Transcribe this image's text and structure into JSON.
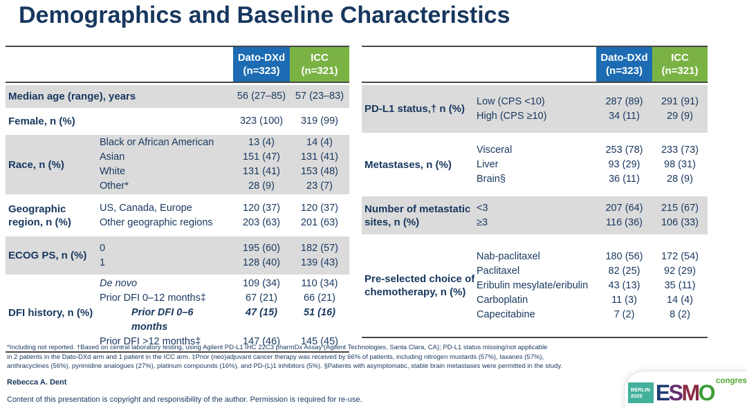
{
  "slide": {
    "title": "Demographics and Baseline Characteristics",
    "author": "Rebecca A. Dent",
    "copyright": "Content of this presentation is copyright and responsibility of the author. Permission is required for re-use."
  },
  "arms": {
    "arm1": {
      "name": "Dato-DXd",
      "n": "(n=323)"
    },
    "arm2": {
      "name": "ICC",
      "n": "(n=321)"
    }
  },
  "left_table": {
    "groups": [
      {
        "label": "Median age (range), years",
        "shaded": true,
        "rows": [
          {
            "sub": "",
            "v1": "56 (27–85)",
            "v2": "57 (23–83)"
          }
        ]
      },
      {
        "label": "Female, n (%)",
        "shaded": false,
        "rows": [
          {
            "sub": "",
            "v1": "323 (100)",
            "v2": "319 (99)"
          }
        ]
      },
      {
        "label": "Race, n (%)",
        "shaded": true,
        "rows": [
          {
            "sub": "Black or African American",
            "v1": "13 (4)",
            "v2": "14 (4)"
          },
          {
            "sub": "Asian",
            "v1": "151 (47)",
            "v2": "131 (41)"
          },
          {
            "sub": "White",
            "v1": "131 (41)",
            "v2": "153 (48)"
          },
          {
            "sub": "Other*",
            "v1": "28 (9)",
            "v2": "23 (7)"
          }
        ]
      },
      {
        "label": "Geographic region, n (%)",
        "shaded": false,
        "rows": [
          {
            "sub": "US, Canada, Europe",
            "v1": "120 (37)",
            "v2": "120 (37)"
          },
          {
            "sub": "Other geographic regions",
            "v1": "203 (63)",
            "v2": "201 (63)"
          }
        ]
      },
      {
        "label": "ECOG PS, n (%)",
        "shaded": true,
        "rows": [
          {
            "sub": "0",
            "v1": "195 (60)",
            "v2": "182 (57)"
          },
          {
            "sub": "1",
            "v1": "128 (40)",
            "v2": "139 (43)"
          }
        ]
      },
      {
        "label": "DFI history, n (%)",
        "shaded": false,
        "rows": [
          {
            "sub": "De novo",
            "style": "italic",
            "v1": "109 (34)",
            "v2": "110 (34)"
          },
          {
            "sub": "Prior DFI 0–12 months‡",
            "v1": "67 (21)",
            "v2": "66 (21)"
          },
          {
            "sub": "Prior DFI 0–6 months",
            "style": "bolditalic",
            "indent": true,
            "v1": "47 (15)",
            "v2": "51 (16)"
          },
          {
            "sub": "Prior DFI >12 months‡",
            "v1": "147 (46)",
            "v2": "145 (45)"
          }
        ]
      }
    ]
  },
  "right_table": {
    "groups": [
      {
        "label": "PD-L1 status,† n (%)",
        "shaded": true,
        "rows": [
          {
            "sub": "Low (CPS <10)",
            "v1": "287 (89)",
            "v2": "291 (91)"
          },
          {
            "sub": "High (CPS ≥10)",
            "v1": "34 (11)",
            "v2": "29 (9)"
          }
        ]
      },
      {
        "label": "Metastases, n (%)",
        "shaded": false,
        "rows": [
          {
            "sub": "Visceral",
            "v1": "253 (78)",
            "v2": "233 (73)"
          },
          {
            "sub": "Liver",
            "v1": "93 (29)",
            "v2": "98 (31)"
          },
          {
            "sub": "Brain§",
            "v1": "36 (11)",
            "v2": "28 (9)"
          }
        ]
      },
      {
        "label": "Number of metastatic sites, n (%)",
        "shaded": true,
        "rows": [
          {
            "sub": "<3",
            "v1": "207 (64)",
            "v2": "215 (67)"
          },
          {
            "sub": "≥3",
            "v1": "116 (36)",
            "v2": "106 (33)"
          }
        ]
      },
      {
        "label": "Pre-selected choice of chemotherapy, n (%)",
        "shaded": false,
        "rows": [
          {
            "sub": "Nab-paclitaxel",
            "v1": "180 (56)",
            "v2": "172 (54)"
          },
          {
            "sub": "Paclitaxel",
            "v1": "82 (25)",
            "v2": "92 (29)"
          },
          {
            "sub": "Eribulin mesylate/eribulin",
            "v1": "43 (13)",
            "v2": "35 (11)"
          },
          {
            "sub": "Carboplatin",
            "v1": "11 (3)",
            "v2": "14 (4)"
          },
          {
            "sub": "Capecitabine",
            "v1": "7 (2)",
            "v2": "8 (2)"
          }
        ]
      }
    ]
  },
  "footnotes": [
    "*Including not reported. †Based on central laboratory testing, using Agilent PD-L1 IHC 22C3 pharmDx Assay (Agilent Technologies, Santa Clara, CA); PD-L1 status missing/not applicable",
    "in 2 patients in the Dato-DXd arm and 1 patient in the ICC arm. ‡Prior (neo)adjuvant cancer therapy was received by 66% of patients, including nitrogen mustards (57%), taxanes (57%),",
    "anthracyclines (56%), pyrimidine analogues (27%), platinum compounds (16%), and PD-(L)1 inhibitors (5%). §Patients with asymptomatic, stable brain metastases were permitted in the study."
  ],
  "logo": {
    "badge_city": "BERLIN",
    "badge_year": "2025",
    "brand": "ESMO",
    "congress": "congress"
  },
  "colors": {
    "header_blue": "#1C6BB3",
    "header_green": "#7AB344",
    "row_shade": "#DBDBDB",
    "text_navy": "#17375E",
    "logo_teal": "#43B09B",
    "logo_green": "#55A630",
    "brand_letter_colors": [
      "#1F3B73",
      "#652D6E",
      "#8A2943",
      "#3E9E39"
    ]
  }
}
